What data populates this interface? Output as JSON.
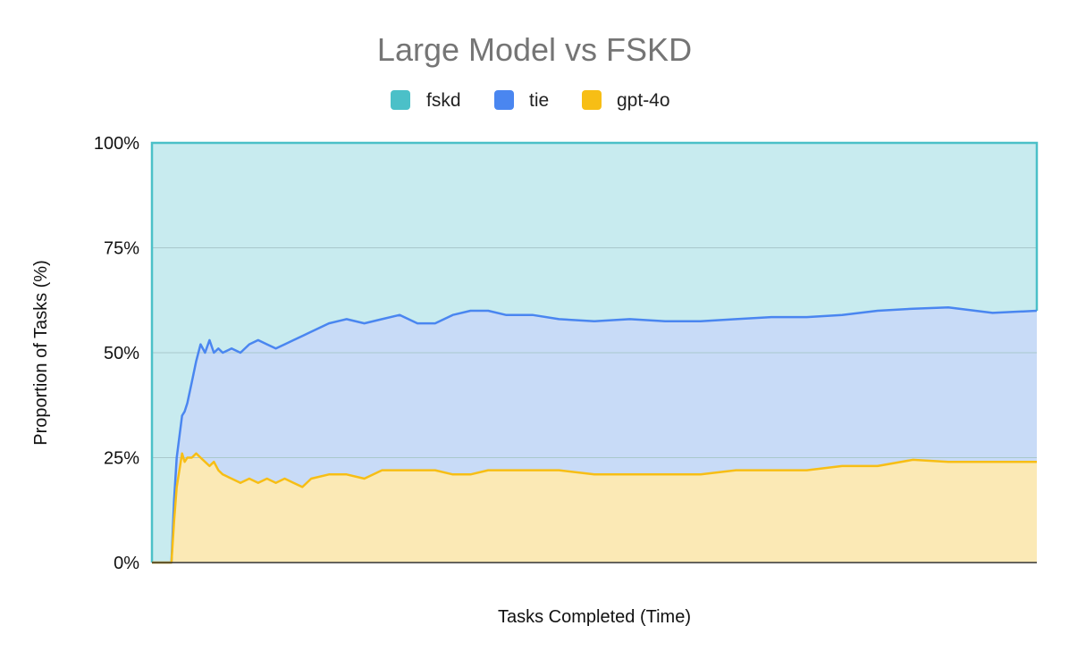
{
  "chart_data": {
    "type": "area",
    "stacked": true,
    "normalized": true,
    "title": "Large Model vs FSKD",
    "xlabel": "Tasks Completed (Time)",
    "ylabel": "Proportion of Tasks (%)",
    "ylim": [
      0,
      100
    ],
    "yticks": [
      "0%",
      "25%",
      "50%",
      "75%",
      "100%"
    ],
    "ytick_values": [
      0,
      25,
      50,
      75,
      100
    ],
    "grid": true,
    "legend_position": "top",
    "legend": [
      {
        "key": "fskd",
        "label": "fskd",
        "color": "#4bc0c8"
      },
      {
        "key": "tie",
        "label": "tie",
        "color": "#4a86f0"
      },
      {
        "key": "gpt4o",
        "label": "gpt-4o",
        "color": "#f7be15"
      }
    ],
    "x": [
      0,
      1,
      2,
      3,
      4,
      5,
      6,
      7,
      8,
      9,
      10,
      12,
      14,
      16,
      18,
      20,
      22,
      25,
      28,
      31,
      34,
      37,
      40,
      45,
      50,
      55,
      60,
      65,
      70,
      75,
      80,
      90,
      100,
      110,
      120,
      130,
      140,
      150,
      160,
      170,
      180,
      200,
      220,
      240,
      260,
      280,
      300,
      320,
      340,
      360,
      380,
      400,
      430,
      460,
      500,
      540,
      580,
      620,
      660,
      700,
      740,
      780,
      820,
      860,
      900,
      950,
      1000
    ],
    "x_range": [
      0,
      1000
    ],
    "series": [
      {
        "key": "gpt4o",
        "name": "gpt-4o",
        "role": "bottom band; y = cumulative share of gpt-4o wins (%)",
        "values": [
          0,
          0,
          0,
          0,
          0,
          0,
          0,
          0,
          0,
          0,
          0,
          0,
          0,
          0,
          0,
          0,
          0,
          10,
          18,
          22,
          26,
          24,
          25,
          25,
          26,
          25,
          24,
          23,
          24,
          22,
          21,
          20,
          19,
          20,
          19,
          20,
          19,
          20,
          19,
          18,
          20,
          21,
          21,
          20,
          22,
          22,
          22,
          22,
          21,
          21,
          22,
          22,
          22,
          22,
          21,
          21,
          21,
          21,
          22,
          22,
          22,
          23,
          23,
          24.5,
          24,
          24,
          24
        ]
      },
      {
        "key": "tie",
        "name": "tie",
        "role": "upper boundary of tie band; y = cumulative share of gpt-4o + tie (%)",
        "values": [
          0,
          0,
          0,
          0,
          0,
          0,
          0,
          0,
          0,
          0,
          0,
          0,
          0,
          0,
          0,
          0,
          0,
          15,
          25,
          30,
          35,
          36,
          38,
          43,
          48,
          52,
          50,
          53,
          50,
          51,
          50,
          51,
          50,
          52,
          53,
          52,
          51,
          52,
          53,
          54,
          55,
          57,
          58,
          57,
          58,
          59,
          57,
          57,
          59,
          60,
          60,
          59,
          59,
          58,
          57.5,
          58,
          57.5,
          57.5,
          58,
          58.5,
          58.5,
          59,
          60,
          60.5,
          60.8,
          59.5,
          60
        ]
      },
      {
        "key": "fskd",
        "name": "fskd",
        "role": "top band from tie boundary up to 100%",
        "values": [
          100,
          100,
          100,
          100,
          100,
          100,
          100,
          100,
          100,
          100,
          100,
          100,
          100,
          100,
          100,
          100,
          100,
          100,
          100,
          100,
          100,
          100,
          100,
          100,
          100,
          100,
          100,
          100,
          100,
          100,
          100,
          100,
          100,
          100,
          100,
          100,
          100,
          100,
          100,
          100,
          100,
          100,
          100,
          100,
          100,
          100,
          100,
          100,
          100,
          100,
          100,
          100,
          100,
          100,
          100,
          100,
          100,
          100,
          100,
          100,
          100,
          100,
          100,
          100,
          100,
          100,
          100
        ]
      }
    ],
    "colors": {
      "fskd_fill": "#c8ebef",
      "tie_fill": "#c8dbf7",
      "gpt4o_fill": "#fbe9b5",
      "gridline": "#a9c8cc",
      "axis": "#333333"
    }
  }
}
